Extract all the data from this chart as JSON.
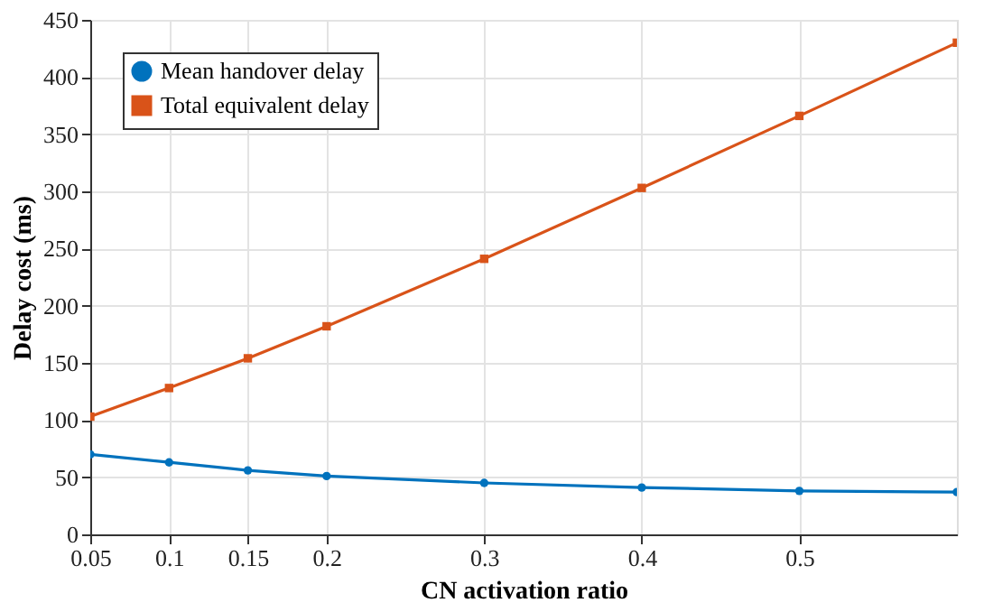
{
  "chart_data": {
    "type": "line",
    "xlabel": "CN activation ratio",
    "ylabel": "Delay cost (ms)",
    "x": [
      0.05,
      0.1,
      0.15,
      0.2,
      0.3,
      0.4,
      0.5,
      0.6
    ],
    "series": [
      {
        "name": "Mean handover delay",
        "color": "#0072bd",
        "marker": "circle",
        "values": [
          70,
          63,
          56,
          51,
          45,
          41,
          38,
          37
        ]
      },
      {
        "name": "Total equivalent delay",
        "color": "#d95319",
        "marker": "square",
        "values": [
          103,
          128,
          154,
          182,
          241,
          303,
          366,
          430
        ]
      }
    ],
    "xlim": [
      0.05,
      0.6
    ],
    "xticks": [
      0.05,
      0.1,
      0.15,
      0.2,
      0.3,
      0.4,
      0.5
    ],
    "ylim": [
      0,
      450
    ],
    "yticks": [
      0,
      50,
      100,
      150,
      200,
      250,
      300,
      350,
      400,
      450
    ],
    "grid": true,
    "legend": "top left",
    "line_style": "solid"
  }
}
